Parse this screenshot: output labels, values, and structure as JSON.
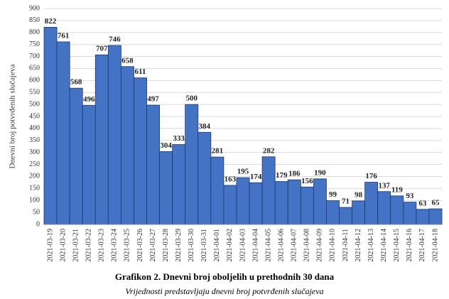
{
  "chart_data": {
    "type": "bar",
    "title": "Grafikon 2. Dnevni broj oboljelih u prethodnih 30 dana",
    "subtitle": "Vrijednosti predstavljaju dnevni broj potvrđenih slučajeva",
    "y_label": "Dnevni broj potvrđenih slučajeva",
    "categories": [
      "2021-03-19",
      "2021-03-20",
      "2021-03-21",
      "2021-03-22",
      "2021-03-23",
      "2021-03-24",
      "2021-03-25",
      "2021-03-26",
      "2021-03-27",
      "2021-03-28",
      "2021-03-29",
      "2021-03-30",
      "2021-03-31",
      "2021-04-01",
      "2021-04-02",
      "2021-04-03",
      "2021-04-04",
      "2021-04-05",
      "2021-04-06",
      "2021-04-07",
      "2021-04-08",
      "2021-04-09",
      "2021-04-10",
      "2021-04-11",
      "2021-04-12",
      "2021-04-13",
      "2021-04-14",
      "2021-04-15",
      "2021-04-16",
      "2021-04-17",
      "2021-04-18"
    ],
    "values": [
      822,
      761,
      568,
      496,
      707,
      746,
      658,
      611,
      497,
      304,
      333,
      500,
      384,
      281,
      163,
      195,
      174,
      282,
      179,
      186,
      156,
      190,
      99,
      71,
      98,
      176,
      137,
      119,
      93,
      63,
      65
    ],
    "color": "#4472c4",
    "ylim": [
      0,
      900
    ],
    "yticks": [
      0,
      50,
      100,
      150,
      200,
      250,
      300,
      350,
      400,
      450,
      500,
      550,
      600,
      650,
      700,
      750,
      800,
      850,
      900
    ],
    "grid": true
  }
}
